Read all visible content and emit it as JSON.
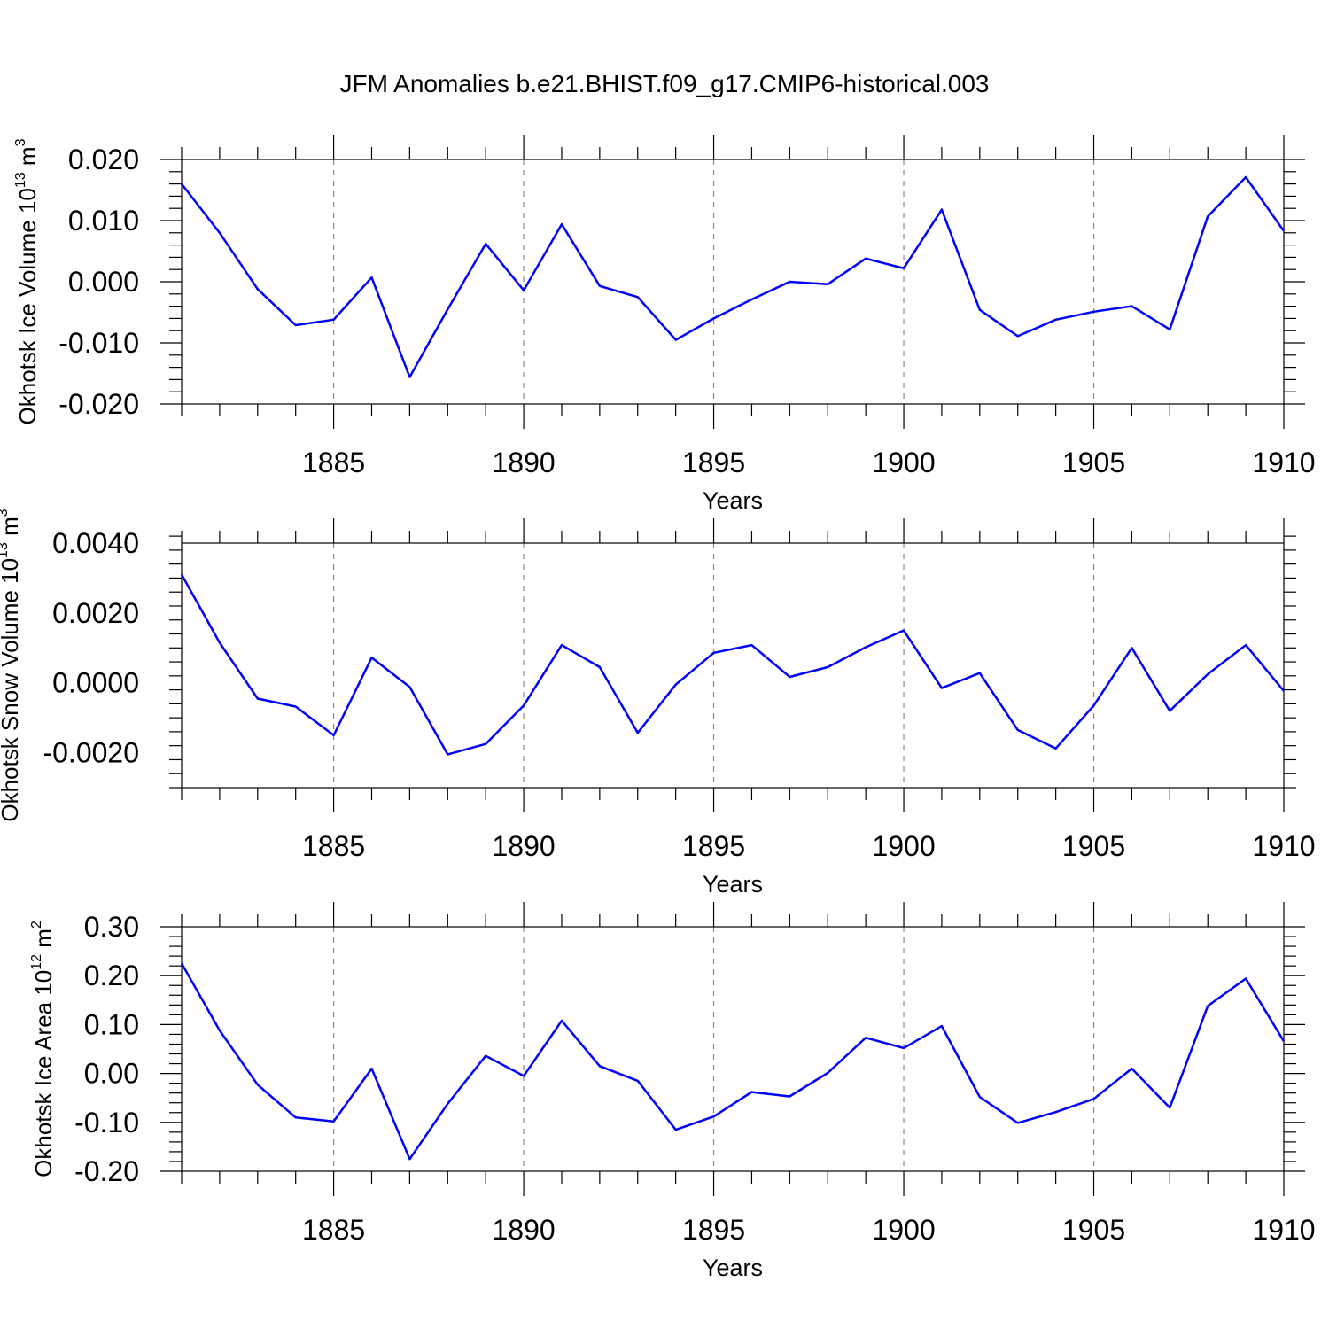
{
  "title": "JFM Anomalies b.e21.BHIST.f09_g17.CMIP6-historical.003",
  "colors": {
    "series": "#0000ff",
    "axis": "#000000",
    "grid": "#888888"
  },
  "chart_data": [
    {
      "type": "line",
      "title": "JFM Anomalies b.e21.BHIST.f09_g17.CMIP6-historical.003",
      "xlabel": "Years",
      "ylabel": "Okhotsk Ice Volume 10",
      "ylabel_exponent": "13",
      "ylabel_unit": "m",
      "ylabel_unit_power": "3",
      "xlim": [
        1881,
        1910
      ],
      "ylim": [
        -0.02,
        0.02
      ],
      "xticks": [
        1885,
        1890,
        1895,
        1900,
        1905,
        1910
      ],
      "xtick_labels": [
        "1885",
        "1890",
        "1895",
        "1900",
        "1905",
        "1910"
      ],
      "yticks": [
        0.02,
        0.01,
        0.0,
        -0.01,
        -0.02
      ],
      "ytick_labels": [
        "0.020",
        "0.010",
        "0.000",
        "-0.010",
        "-0.020"
      ],
      "grid": "vertical dashed at major x ticks",
      "x": [
        1881,
        1882,
        1883,
        1884,
        1885,
        1886,
        1887,
        1888,
        1889,
        1890,
        1891,
        1892,
        1893,
        1894,
        1895,
        1896,
        1897,
        1898,
        1899,
        1900,
        1901,
        1902,
        1903,
        1904,
        1905,
        1906,
        1907,
        1908,
        1909,
        1910
      ],
      "values": [
        0.016,
        0.008,
        -0.0012,
        -0.0071,
        -0.0062,
        0.0007,
        -0.0156,
        -0.0045,
        0.0062,
        -0.0014,
        0.0094,
        -0.0007,
        -0.0025,
        -0.0095,
        -0.006,
        -0.0029,
        0.0,
        -0.0004,
        0.0038,
        0.0022,
        0.0118,
        -0.0046,
        -0.0089,
        -0.0062,
        -0.0049,
        -0.004,
        -0.0078,
        0.0107,
        0.0171,
        0.0083
      ]
    },
    {
      "type": "line",
      "xlabel": "Years",
      "ylabel": "Okhotsk Snow Volume 10",
      "ylabel_exponent": "13",
      "ylabel_unit": "m",
      "ylabel_unit_power": "3",
      "xlim": [
        1881,
        1910
      ],
      "ylim": [
        -0.003,
        0.004
      ],
      "xticks": [
        1885,
        1890,
        1895,
        1900,
        1905,
        1910
      ],
      "xtick_labels": [
        "1885",
        "1890",
        "1895",
        "1900",
        "1905",
        "1910"
      ],
      "yticks": [
        0.004,
        0.002,
        0.0,
        -0.002
      ],
      "ytick_labels": [
        "0.0040",
        "0.0020",
        "0.0000",
        "-0.0020"
      ],
      "grid": "vertical dashed at major x ticks",
      "x": [
        1881,
        1882,
        1883,
        1884,
        1885,
        1886,
        1887,
        1888,
        1889,
        1890,
        1891,
        1892,
        1893,
        1894,
        1895,
        1896,
        1897,
        1898,
        1899,
        1900,
        1901,
        1902,
        1903,
        1904,
        1905,
        1906,
        1907,
        1908,
        1909,
        1910
      ],
      "values": [
        0.0031,
        0.00115,
        -0.00045,
        -0.00068,
        -0.0015,
        0.00072,
        -0.00012,
        -0.00205,
        -0.00175,
        -0.00065,
        0.00108,
        0.00045,
        -0.00143,
        -5e-05,
        0.00086,
        0.00108,
        0.00017,
        0.00045,
        0.00102,
        0.0015,
        -0.00015,
        0.00028,
        -0.00135,
        -0.00188,
        -0.00065,
        0.001,
        -0.0008,
        0.00025,
        0.00108,
        -0.00023
      ]
    },
    {
      "type": "line",
      "xlabel": "Years",
      "ylabel": "Okhotsk Ice Area 10",
      "ylabel_exponent": "12",
      "ylabel_unit": "m",
      "ylabel_unit_power": "2",
      "xlim": [
        1881,
        1910
      ],
      "ylim": [
        -0.2,
        0.3
      ],
      "xticks": [
        1885,
        1890,
        1895,
        1900,
        1905,
        1910
      ],
      "xtick_labels": [
        "1885",
        "1890",
        "1895",
        "1900",
        "1905",
        "1910"
      ],
      "yticks": [
        0.3,
        0.2,
        0.1,
        0.0,
        -0.1,
        -0.2
      ],
      "ytick_labels": [
        "0.30",
        "0.20",
        "0.10",
        "0.00",
        "-0.10",
        "-0.20"
      ],
      "grid": "vertical dashed at major x ticks",
      "x": [
        1881,
        1882,
        1883,
        1884,
        1885,
        1886,
        1887,
        1888,
        1889,
        1890,
        1891,
        1892,
        1893,
        1894,
        1895,
        1896,
        1897,
        1898,
        1899,
        1900,
        1901,
        1902,
        1903,
        1904,
        1905,
        1906,
        1907,
        1908,
        1909,
        1910
      ],
      "values": [
        0.225,
        0.088,
        -0.023,
        -0.09,
        -0.098,
        0.01,
        -0.175,
        -0.062,
        0.036,
        -0.005,
        0.108,
        0.015,
        -0.015,
        -0.115,
        -0.088,
        -0.038,
        -0.047,
        0.001,
        0.073,
        0.052,
        0.097,
        -0.048,
        -0.101,
        -0.079,
        -0.052,
        0.01,
        -0.07,
        0.138,
        0.194,
        0.066
      ]
    }
  ]
}
